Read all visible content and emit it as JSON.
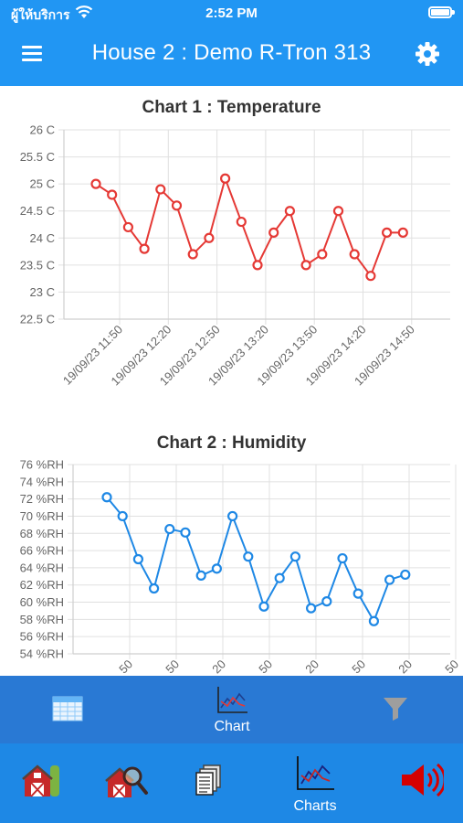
{
  "status": {
    "carrier": "ผู้ให้บริการ",
    "time": "2:52 PM"
  },
  "header": {
    "title": "House 2 : Demo R-Tron 313"
  },
  "colors": {
    "primary": "#2196f3",
    "temperature": "#e53935",
    "humidity": "#1e88e5"
  },
  "chart_data": [
    {
      "type": "line",
      "title": "Chart 1 : Temperature",
      "yticks": [
        "26 C",
        "25.5 C",
        "25 C",
        "24.5 C",
        "24 C",
        "23.5 C",
        "23 C",
        "22.5 C"
      ],
      "ylim": [
        22.5,
        26
      ],
      "xticks": [
        "19/09/23 11:50",
        "19/09/23 12:20",
        "19/09/23 12:50",
        "19/09/23 13:20",
        "19/09/23 13:50",
        "19/09/23 14:20",
        "19/09/23 14:50"
      ],
      "series": [
        {
          "values": [
            25.0,
            24.8,
            24.2,
            23.8,
            24.9,
            24.6,
            23.7,
            24.0,
            25.1,
            24.3,
            23.5,
            24.1,
            24.5,
            23.5,
            23.7,
            24.5,
            23.7,
            23.3,
            24.1,
            24.1
          ]
        }
      ],
      "grid": true
    },
    {
      "type": "line",
      "title": "Chart 2 : Humidity",
      "yticks": [
        "76 %RH",
        "74 %RH",
        "72 %RH",
        "70 %RH",
        "68 %RH",
        "66 %RH",
        "64 %RH",
        "62 %RH",
        "60 %RH",
        "58 %RH",
        "56 %RH",
        "54 %RH"
      ],
      "ylim": [
        54,
        76
      ],
      "xticks": [
        "50",
        "50",
        "20",
        "50",
        "20",
        "50",
        "20",
        "50"
      ],
      "series": [
        {
          "values": [
            72.2,
            70.0,
            65.0,
            61.6,
            68.5,
            68.1,
            63.1,
            63.9,
            70.0,
            65.3,
            59.5,
            62.8,
            65.3,
            59.3,
            60.1,
            65.1,
            61.0,
            57.8,
            62.6,
            63.2
          ]
        }
      ],
      "grid": true
    }
  ],
  "subnav": {
    "items": [
      {
        "icon": "table-icon",
        "label": ""
      },
      {
        "icon": "chart-icon",
        "label": "Chart"
      },
      {
        "icon": "filter-icon",
        "label": ""
      }
    ]
  },
  "tabs": [
    {
      "icon": "barn-icon",
      "label": ""
    },
    {
      "icon": "barn-search-icon",
      "label": ""
    },
    {
      "icon": "documents-icon",
      "label": ""
    },
    {
      "icon": "charts-icon",
      "label": "Charts"
    },
    {
      "icon": "speaker-icon",
      "label": ""
    }
  ]
}
